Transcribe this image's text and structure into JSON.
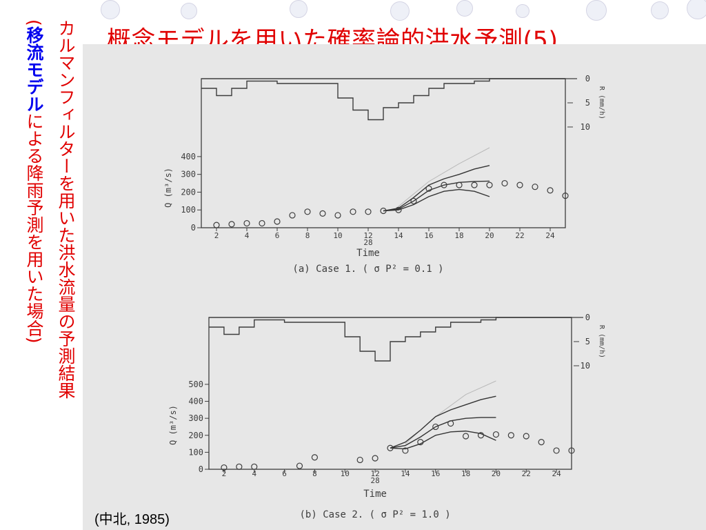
{
  "slide": {
    "title": "概念モデルを用いた確率論的洪水予測(5)",
    "caption_main": "カルマンフィルターを用いた洪水流量の予測結果",
    "caption_sub": {
      "open": "(",
      "highlight1": "移流モデル",
      "mid": "による降雨予測を用いた場合",
      "close": ")"
    },
    "source": "(中北, 1985)",
    "colors": {
      "title": "#e00000",
      "highlight": "#0000ee",
      "bubble": "#eef0f7",
      "scan": "#e7e7e7",
      "ink": "#3c3c3c"
    }
  },
  "chart_data": [
    {
      "type": "line",
      "caption": "(a)  Case 1.  ( σ P² = 0.1 )",
      "xlabel": "Time",
      "x_day_label": "28",
      "x_ticks": [
        "2",
        "4",
        "6",
        "8",
        "10",
        "12",
        "14",
        "16",
        "18",
        "20",
        "22",
        "24"
      ],
      "xlim": [
        1,
        25
      ],
      "ylabel": "Q (m³/s)",
      "yticks": [
        0,
        100,
        200,
        300,
        400
      ],
      "ylim": [
        0,
        450
      ],
      "rain_label": "R (mm/h)",
      "rain_ticks": [
        0,
        5,
        10
      ],
      "rain_ylim": [
        0,
        10
      ],
      "rainfall": {
        "x": [
          1,
          2,
          3,
          4,
          6,
          8,
          10,
          11,
          12,
          13,
          14,
          15,
          16,
          17,
          18,
          19,
          20,
          25
        ],
        "values": [
          2,
          3.5,
          2,
          0.5,
          1,
          1,
          4,
          6.5,
          8.5,
          6,
          5,
          3.5,
          2,
          1,
          1,
          0.5,
          0,
          0
        ]
      },
      "observed": {
        "x": [
          2,
          3,
          4,
          5,
          6,
          7,
          8,
          9,
          10,
          11,
          12,
          13,
          14,
          15,
          16,
          17,
          18,
          19,
          20,
          21,
          22,
          23,
          24,
          25
        ],
        "y": [
          15,
          20,
          25,
          25,
          35,
          70,
          90,
          80,
          70,
          90,
          90,
          95,
          100,
          150,
          220,
          240,
          240,
          240,
          240,
          250,
          240,
          230,
          210,
          180
        ]
      },
      "series": [
        {
          "x": [
            13,
            14,
            15,
            16,
            17,
            18,
            19,
            20
          ],
          "y": [
            95,
            110,
            170,
            240,
            275,
            300,
            330,
            350
          ]
        },
        {
          "x": [
            13,
            14,
            15,
            16,
            17,
            18,
            19,
            20
          ],
          "y": [
            95,
            105,
            150,
            210,
            240,
            255,
            260,
            262
          ]
        },
        {
          "x": [
            13,
            14,
            15,
            16,
            17,
            18,
            19,
            20
          ],
          "y": [
            95,
            100,
            130,
            175,
            205,
            215,
            205,
            175
          ]
        }
      ],
      "faint_series": {
        "x": [
          14,
          16,
          18,
          20
        ],
        "y": [
          120,
          260,
          360,
          480
        ]
      }
    },
    {
      "type": "line",
      "caption": "(b)  Case 2.  ( σ P² = 1.0 )",
      "xlabel": "Time",
      "x_day_label": "28",
      "x_ticks": [
        "2",
        "4",
        "6",
        "8",
        "10",
        "12",
        "14",
        "16",
        "18",
        "20",
        "22",
        "24"
      ],
      "xlim": [
        1,
        25
      ],
      "ylabel": "Q (m³/s)",
      "yticks": [
        0,
        100,
        200,
        300,
        400,
        500
      ],
      "ylim": [
        0,
        520
      ],
      "rain_label": "R (mm/h)",
      "rain_ticks": [
        0,
        5,
        10
      ],
      "rain_ylim": [
        0,
        10
      ],
      "rainfall": {
        "x": [
          1,
          2,
          3,
          4,
          6,
          8,
          10,
          11,
          12,
          13,
          14,
          15,
          16,
          17,
          18,
          19,
          20,
          25
        ],
        "values": [
          2,
          3.5,
          2,
          0.5,
          1,
          1,
          4,
          7,
          9,
          5,
          4,
          3,
          2,
          1,
          1,
          0.5,
          0,
          0
        ]
      },
      "observed": {
        "x": [
          2,
          3,
          4,
          7,
          8,
          11,
          12,
          13,
          14,
          15,
          16,
          17,
          18,
          19,
          20,
          21,
          22,
          23,
          24,
          25
        ],
        "y": [
          10,
          15,
          15,
          20,
          70,
          55,
          65,
          125,
          110,
          160,
          250,
          270,
          195,
          200,
          205,
          200,
          195,
          160,
          110,
          110
        ]
      },
      "series": [
        {
          "x": [
            13,
            14,
            15,
            16,
            17,
            18,
            19,
            20
          ],
          "y": [
            125,
            160,
            230,
            310,
            350,
            380,
            410,
            430
          ]
        },
        {
          "x": [
            13,
            14,
            15,
            16,
            17,
            18,
            19,
            20
          ],
          "y": [
            125,
            140,
            190,
            250,
            285,
            300,
            305,
            305
          ]
        },
        {
          "x": [
            13,
            14,
            15,
            16,
            17,
            18,
            19,
            20
          ],
          "y": [
            125,
            120,
            150,
            200,
            220,
            225,
            210,
            170
          ]
        }
      ],
      "faint_series": {
        "x": [
          14,
          16,
          18,
          20
        ],
        "y": [
          150,
          310,
          440,
          580
        ]
      }
    }
  ]
}
